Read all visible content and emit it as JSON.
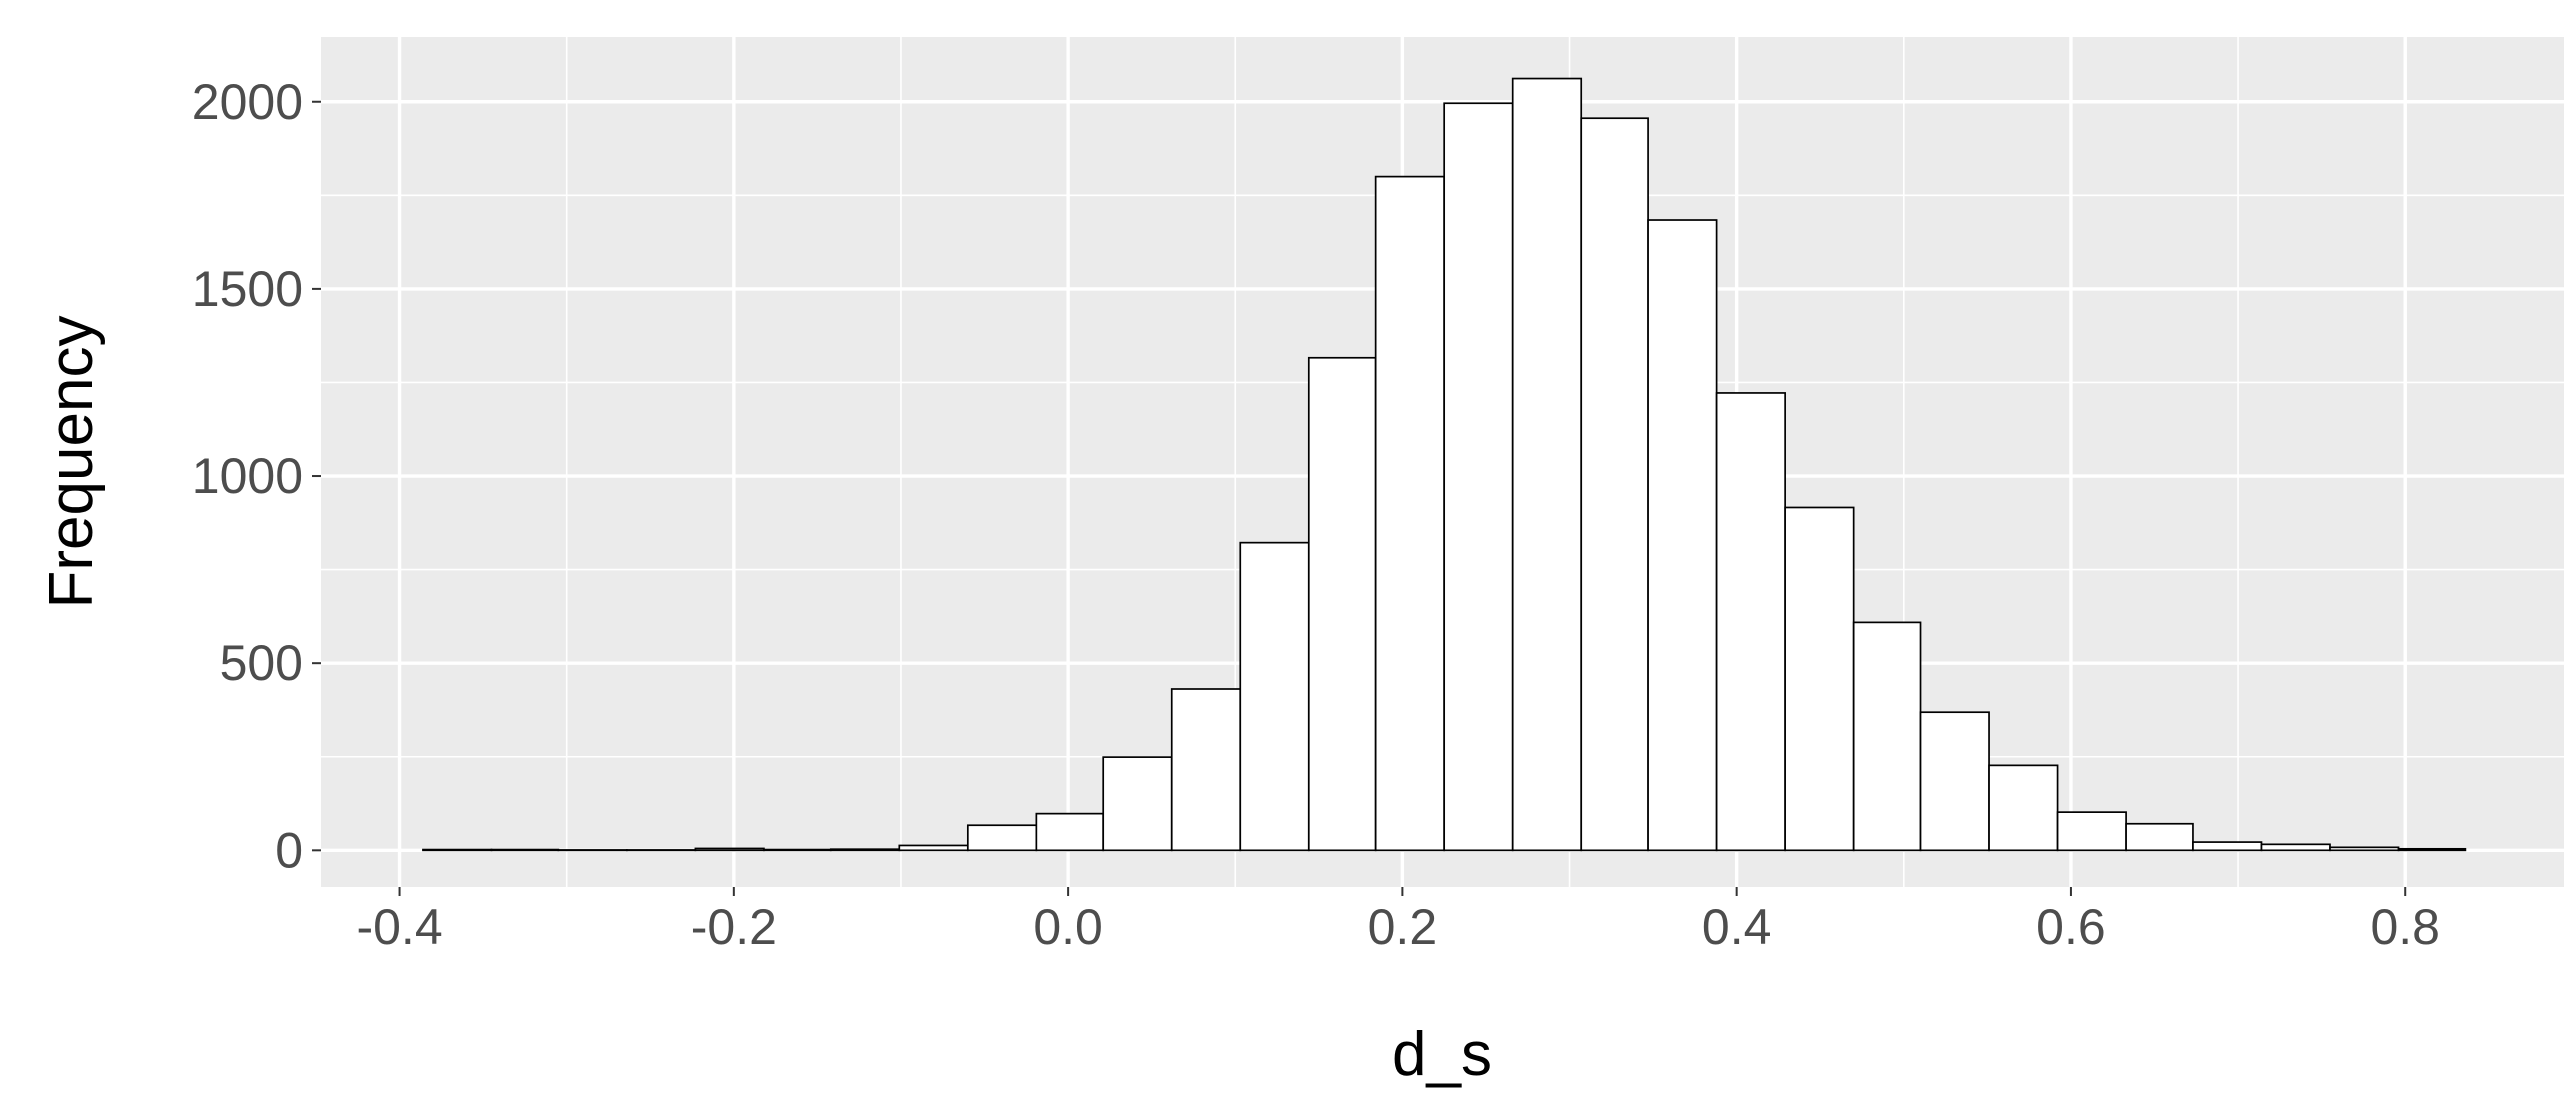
{
  "chart_data": {
    "type": "histogram",
    "x_label": "d_s",
    "y_label": "Frequency",
    "bins": [
      -0.386,
      -0.345,
      -0.305,
      -0.264,
      -0.223,
      -0.182,
      -0.142,
      -0.101,
      -0.06,
      -0.019,
      0.021,
      0.062,
      0.103,
      0.144,
      0.184,
      0.225,
      0.266,
      0.307,
      0.347,
      0.388,
      0.429,
      0.47,
      0.51,
      0.551,
      0.592,
      0.633,
      0.673,
      0.714,
      0.755,
      0.796,
      0.836
    ],
    "values": [
      2,
      2,
      1,
      1,
      5,
      2,
      3,
      13,
      67,
      98,
      249,
      431,
      822,
      1316,
      1800,
      1996,
      2062,
      1956,
      1684,
      1222,
      916,
      609,
      369,
      227,
      102,
      71,
      22,
      16,
      8,
      4
    ],
    "color": "#ffffff",
    "edgecolor": "#000000",
    "xlim": [
      -0.447,
      0.895
    ],
    "ylim": [
      -98,
      2173
    ],
    "xticks": [
      -0.4,
      -0.2,
      {
        "value": 0,
        "label": "0.0"
      },
      0.2,
      0.4,
      0.6,
      0.8
    ],
    "yticks": [
      0,
      500,
      1000,
      1500,
      2000
    ],
    "grid": true,
    "minor_grid": true,
    "panel_color": "#ebebeb"
  }
}
